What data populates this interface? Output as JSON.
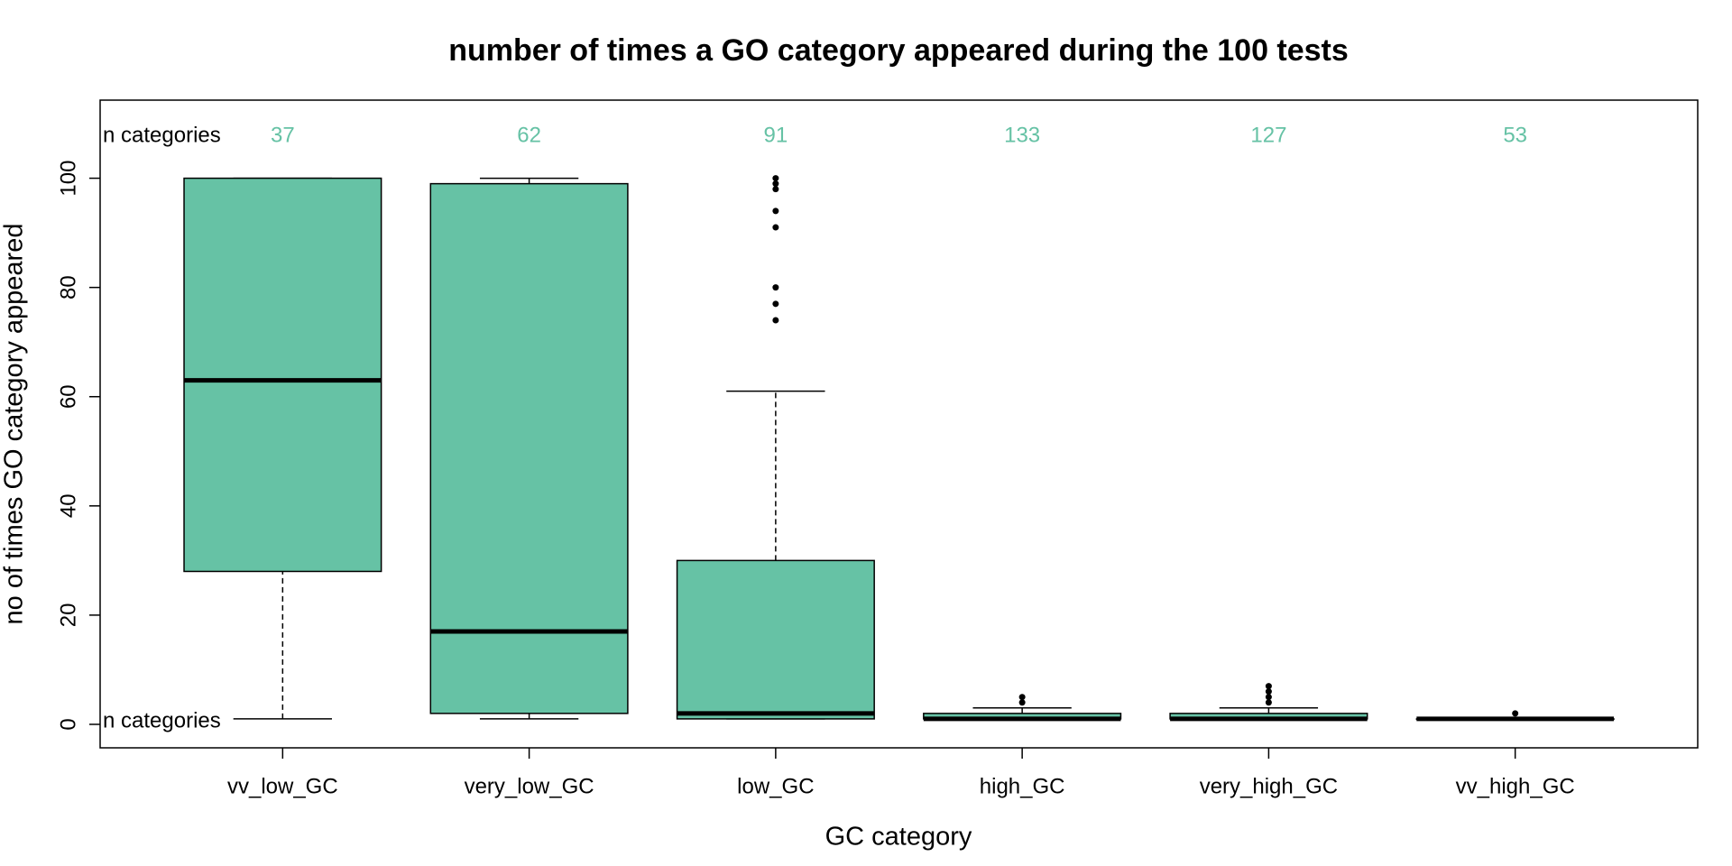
{
  "chart_data": {
    "type": "boxplot",
    "title": "number of times a GO category appeared during the 100 tests",
    "x_label": "GC category",
    "y_label": "no of times GO category appeared",
    "categories": [
      "vv_low_GC",
      "very_low_GC",
      "low_GC",
      "high_GC",
      "very_high_GC",
      "vv_high_GC"
    ],
    "whislo": [
      1,
      1,
      1,
      1,
      1,
      1
    ],
    "q1": [
      28,
      2,
      1,
      1,
      1,
      1
    ],
    "median": [
      63,
      17,
      2,
      1,
      1,
      1
    ],
    "q3": [
      100,
      99,
      30,
      2,
      2,
      1
    ],
    "whishi": [
      100,
      100,
      61,
      3,
      3,
      1
    ],
    "outliers": [
      [],
      [],
      [
        74,
        77,
        80,
        91,
        94,
        98,
        99,
        100
      ],
      [
        4,
        5
      ],
      [
        4,
        5,
        6,
        7
      ],
      [
        2
      ]
    ],
    "n": [
      37,
      62,
      91,
      133,
      127,
      53
    ],
    "annotations": [
      "n categories",
      "n categories"
    ],
    "color": "#66c2a5",
    "n_color": "#66c2a5",
    "ylim": [
      -4.3,
      114.3
    ],
    "yticks": [
      0,
      20,
      40,
      60,
      80,
      100
    ],
    "grid": false
  }
}
